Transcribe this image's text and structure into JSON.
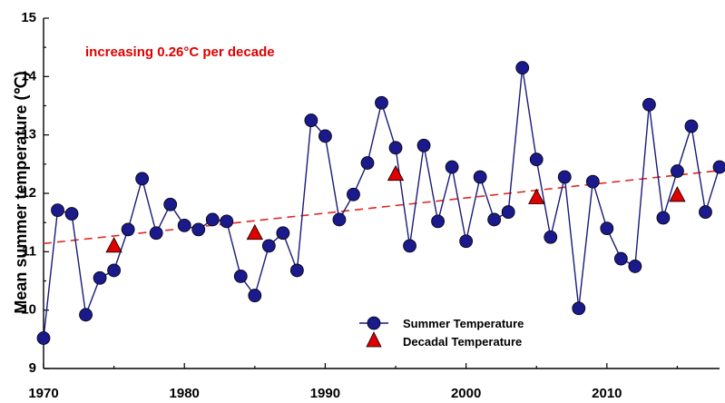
{
  "chart_data": {
    "type": "line",
    "title": "",
    "xlabel": "",
    "ylabel": "Mean summer temperature (℃)",
    "xlim": [
      1970,
      2018
    ],
    "ylim": [
      9,
      15
    ],
    "x_ticks": [
      1970,
      1980,
      1990,
      2000,
      2010
    ],
    "y_ticks": [
      9,
      10,
      11,
      12,
      13,
      14,
      15
    ],
    "annotation": "increasing 0.26°C per decade",
    "legend_position": "bottom-center",
    "colors": {
      "summer_line": "#1a1a7a",
      "summer_marker": "#1a1a8c",
      "decadal_marker": "#e00000",
      "trend": "#e0281e",
      "annotation": "#e00000"
    },
    "series": [
      {
        "name": "Summer Temperature",
        "marker": "circle",
        "x": [
          1970,
          1971,
          1972,
          1973,
          1974,
          1975,
          1976,
          1977,
          1978,
          1979,
          1980,
          1981,
          1982,
          1983,
          1984,
          1985,
          1986,
          1987,
          1988,
          1989,
          1990,
          1991,
          1992,
          1993,
          1994,
          1995,
          1996,
          1997,
          1998,
          1999,
          2000,
          2001,
          2002,
          2003,
          2004,
          2005,
          2006,
          2007,
          2008,
          2009,
          2010,
          2011,
          2012,
          2013,
          2014,
          2015,
          2016,
          2017,
          2018
        ],
        "values": [
          9.52,
          11.71,
          11.65,
          9.92,
          10.55,
          10.68,
          11.38,
          12.25,
          11.32,
          11.81,
          11.45,
          11.38,
          11.55,
          11.52,
          10.58,
          10.25,
          11.1,
          11.32,
          10.68,
          13.25,
          12.98,
          11.55,
          11.98,
          12.52,
          13.55,
          12.78,
          11.1,
          12.82,
          11.52,
          12.45,
          11.18,
          12.28,
          11.55,
          11.68,
          14.15,
          12.58,
          11.25,
          12.28,
          10.03,
          12.2,
          11.4,
          10.88,
          10.75,
          13.52,
          11.58,
          12.38,
          13.15,
          11.68,
          12.45
        ]
      },
      {
        "name": "Decadal Temperature",
        "marker": "triangle",
        "x": [
          1975,
          1985,
          1995,
          2005,
          2015
        ],
        "values": [
          11.1,
          11.32,
          12.33,
          11.93,
          11.97
        ]
      }
    ],
    "trend_line": {
      "style": "dashed",
      "x": [
        1970,
        2018
      ],
      "values": [
        11.14,
        12.39
      ]
    }
  }
}
